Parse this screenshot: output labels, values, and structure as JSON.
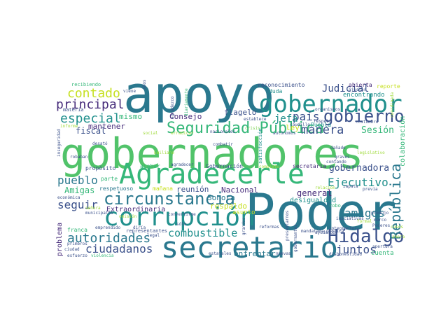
{
  "colors": {
    "background": "#ffffff",
    "palette": [
      "#2a788e",
      "#51c36a",
      "#3b518b",
      "#472d7b",
      "#21908d",
      "#9fda3a",
      "#c6e021",
      "#7ad151",
      "#35b779",
      "#fde725"
    ]
  },
  "words": [
    {
      "text": "gobernadores",
      "color": "#51c36a"
    },
    {
      "text": "apoyo",
      "color": "#2a788e"
    },
    {
      "text": "Poder",
      "color": "#2a788e"
    },
    {
      "text": "secretario",
      "color": "#2a788e"
    },
    {
      "text": "corrupción",
      "color": "#21908d"
    },
    {
      "text": "Agradecerle",
      "color": "#35b779"
    },
    {
      "text": "gobernador",
      "color": "#21908d"
    },
    {
      "text": "Seguridad Pública",
      "color": "#35b779"
    },
    {
      "text": "circunstancia",
      "color": "#2a788e"
    },
    {
      "text": "gobierno",
      "color": "#3b518b"
    },
    {
      "text": "Hidalgo",
      "color": "#3b518b"
    },
    {
      "text": "República",
      "color": "#2a788e"
    },
    {
      "text": "ciudadanos",
      "color": "#3b518b"
    },
    {
      "text": "autoridades",
      "color": "#2a788e"
    },
    {
      "text": "combustible",
      "color": "#21908d"
    },
    {
      "text": "contado",
      "color": "#c6e021"
    },
    {
      "text": "principal",
      "color": "#472d7b"
    },
    {
      "text": "especial",
      "color": "#21908d"
    },
    {
      "text": "manera",
      "color": "#3b518b"
    },
    {
      "text": "Ejecutivo",
      "color": "#21908d"
    },
    {
      "text": "juntos",
      "color": "#3b518b"
    },
    {
      "text": "amigos",
      "color": "#2a788e"
    },
    {
      "text": "pueblo",
      "color": "#2a788e"
    },
    {
      "text": "seguir",
      "color": "#3b518b"
    },
    {
      "text": "país",
      "color": "#3b518b"
    },
    {
      "text": "Judicial",
      "color": "#3b518b"
    },
    {
      "text": "jefa",
      "color": "#21908d"
    },
    {
      "text": "Sesión",
      "color": "#35b779"
    },
    {
      "text": "gobernadora",
      "color": "#3b518b"
    },
    {
      "text": "mantener",
      "color": "#472d7b"
    },
    {
      "text": "fiscal",
      "color": "#3b518b"
    },
    {
      "text": "mismo",
      "color": "#35b779"
    },
    {
      "text": "Consejo",
      "color": "#472d7b"
    },
    {
      "text": "flagelo",
      "color": "#3b518b"
    },
    {
      "text": "Amigas",
      "color": "#35b779"
    },
    {
      "text": "Extraordinaria",
      "color": "#472d7b"
    },
    {
      "text": "reunión",
      "color": "#3b518b"
    },
    {
      "text": "Nacional",
      "color": "#472d7b"
    },
    {
      "text": "Sonora",
      "color": "#2a788e"
    },
    {
      "text": "respaldo",
      "color": "#c6e021"
    },
    {
      "text": "general",
      "color": "#472d7b"
    },
    {
      "text": "desigualdad",
      "color": "#21908d"
    },
    {
      "text": "enfrentar",
      "color": "#2a788e"
    },
    {
      "text": "problema",
      "color": "#472d7b"
    },
    {
      "text": "colaboración",
      "color": "#35b779"
    },
    {
      "text": "ley",
      "color": "#c6e021"
    },
    {
      "text": "encontrando",
      "color": "#21908d"
    },
    {
      "text": "abierta",
      "color": "#472d7b"
    },
    {
      "text": "reporte",
      "color": "#c6e021"
    },
    {
      "text": "reconocimiento",
      "color": "#3b518b"
    },
    {
      "text": "duda",
      "color": "#21908d"
    },
    {
      "text": "recibiendo",
      "color": "#35b779"
    },
    {
      "text": "materia",
      "color": "#3b518b"
    },
    {
      "text": "propósito",
      "color": "#3b518b"
    },
    {
      "text": "acabar",
      "color": "#35b779"
    },
    {
      "text": "respetuoso",
      "color": "#2a788e"
    },
    {
      "text": "mañana",
      "color": "#c6e021"
    },
    {
      "text": "secretaria",
      "color": "#472d7b"
    },
    {
      "text": "Gobernación",
      "color": "#3b518b"
    },
    {
      "text": "parte",
      "color": "#35b779"
    },
    {
      "text": "Puebla",
      "color": "#21908d"
    },
    {
      "text": "asunto",
      "color": "#c6e021"
    },
    {
      "text": "cuenta",
      "color": "#35b779"
    },
    {
      "text": "franca",
      "color": "#35b779"
    },
    {
      "text": "representantes",
      "color": "#3b518b"
    },
    {
      "text": "municipales",
      "color": "#3b518b"
    },
    {
      "text": "estatales",
      "color": "#3b518b"
    },
    {
      "text": "reformas",
      "color": "#3b518b"
    },
    {
      "text": "zapata",
      "color": "#3b518b"
    },
    {
      "text": "previa",
      "color": "#3b518b"
    },
    {
      "text": "Poderes",
      "color": "#3b518b"
    },
    {
      "text": "grandes",
      "color": "#3b518b"
    },
    {
      "text": "dañado",
      "color": "#3b518b"
    },
    {
      "text": "robo",
      "color": "#35b779"
    },
    {
      "text": "iniciativas",
      "color": "#3b518b"
    },
    {
      "text": "caudillo",
      "color": "#3b518b"
    },
    {
      "text": "respeto",
      "color": "#3b518b"
    },
    {
      "text": "organismos",
      "color": "#3b518b"
    },
    {
      "text": "ajustar",
      "color": "#3b518b"
    },
    {
      "text": "robaban",
      "color": "#3b518b"
    },
    {
      "text": "convertirme",
      "color": "#3b518b"
    },
    {
      "text": "emprendido",
      "color": "#3b518b"
    },
    {
      "text": "viene",
      "color": "#3b518b"
    },
    {
      "text": "agradecer",
      "color": "#3b518b"
    },
    {
      "text": "nacionales",
      "color": "#3b518b"
    },
    {
      "text": "autónomos",
      "color": "#3b518b"
    },
    {
      "text": "establece",
      "color": "#3b518b"
    },
    {
      "text": "crisis",
      "color": "#7ad151"
    },
    {
      "text": "contando",
      "color": "#3b518b"
    },
    {
      "text": "mandatada",
      "color": "#3b518b"
    },
    {
      "text": "nuevas",
      "color": "#3b518b"
    },
    {
      "text": "dishonestidad",
      "color": "#3b518b"
    },
    {
      "text": "apertura",
      "color": "#3b518b"
    },
    {
      "text": "marco",
      "color": "#3b518b"
    },
    {
      "text": "formal",
      "color": "#9fda3a"
    },
    {
      "text": "informe",
      "color": "#9fda3a"
    },
    {
      "text": "económica",
      "color": "#3b518b"
    },
    {
      "text": "señora",
      "color": "#9fda3a"
    },
    {
      "text": "primeros",
      "color": "#3b518b"
    },
    {
      "text": "ciudad",
      "color": "#3b518b"
    },
    {
      "text": "esfuerzo",
      "color": "#3b518b"
    },
    {
      "text": "violencia",
      "color": "#35b779"
    },
    {
      "text": "erradicar",
      "color": "#9fda3a"
    },
    {
      "text": "social",
      "color": "#9fda3a"
    },
    {
      "text": "combatir",
      "color": "#3b518b"
    },
    {
      "text": "relación",
      "color": "#9fda3a"
    },
    {
      "text": "ayudando",
      "color": "#3b518b"
    },
    {
      "text": "produjo",
      "color": "#3b518b"
    },
    {
      "text": "casos",
      "color": "#9fda3a"
    },
    {
      "text": "costumbre",
      "color": "#3b518b"
    },
    {
      "text": "legislativo",
      "color": "#9fda3a"
    },
    {
      "text": "integrantes",
      "color": "#3b518b"
    },
    {
      "text": "Emiliano",
      "color": "#9fda3a"
    },
    {
      "text": "desató",
      "color": "#3b518b"
    },
    {
      "text": "pública",
      "color": "#3b518b"
    },
    {
      "text": "sólo",
      "color": "#3b518b"
    },
    {
      "text": "diría",
      "color": "#3b518b"
    },
    {
      "text": "omisión",
      "color": "#9fda3a"
    },
    {
      "text": "legal",
      "color": "#3b518b"
    },
    {
      "text": "satisfacción",
      "color": "#21908d"
    },
    {
      "text": "complete",
      "color": "#9fda3a"
    },
    {
      "text": "gobernantes",
      "color": "#3b518b"
    },
    {
      "text": "presentarnos",
      "color": "#3b518b"
    },
    {
      "text": "ahora",
      "color": "#9fda3a"
    },
    {
      "text": "agradezco",
      "color": "#3b518b"
    },
    {
      "text": "diariamente",
      "color": "#35b779"
    },
    {
      "text": "años",
      "color": "#3b518b"
    },
    {
      "text": "graves",
      "color": "#3b518b"
    },
    {
      "text": "inseguridad",
      "color": "#3b518b"
    },
    {
      "text": "coordinada",
      "color": "#9fda3a"
    }
  ]
}
